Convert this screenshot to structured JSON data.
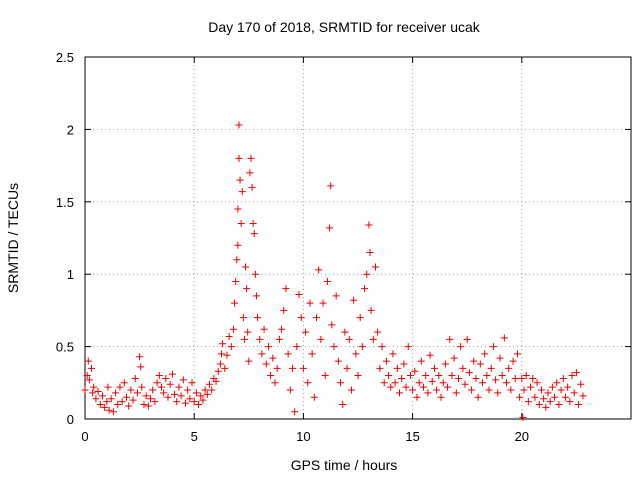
{
  "chart_data": {
    "type": "scatter",
    "title": "Day 170 of 2018, SRMTID for receiver ucak",
    "xlabel": "GPS time / hours",
    "ylabel": "SRMTID / TECUs",
    "xlim": [
      0,
      25
    ],
    "ylim": [
      0,
      2.5
    ],
    "xticks": [
      0,
      5,
      10,
      15,
      20
    ],
    "xtick_labels": [
      "0",
      "5",
      "10",
      "15",
      "20"
    ],
    "yticks": [
      0,
      0.5,
      1,
      1.5,
      2,
      2.5
    ],
    "ytick_labels": [
      "0",
      "0.5",
      "1",
      "1.5",
      "2",
      "2.5"
    ],
    "grid": true,
    "marker": "+",
    "color": "#ee0000",
    "series": [
      {
        "name": "SRMTID",
        "points": [
          [
            0.0,
            0.2
          ],
          [
            0.1,
            0.3
          ],
          [
            0.15,
            0.4
          ],
          [
            0.2,
            0.27
          ],
          [
            0.3,
            0.35
          ],
          [
            0.35,
            0.18
          ],
          [
            0.4,
            0.22
          ],
          [
            0.5,
            0.14
          ],
          [
            0.6,
            0.19
          ],
          [
            0.7,
            0.1
          ],
          [
            0.8,
            0.16
          ],
          [
            0.9,
            0.08
          ],
          [
            1.0,
            0.12
          ],
          [
            1.05,
            0.22
          ],
          [
            1.1,
            0.06
          ],
          [
            1.2,
            0.14
          ],
          [
            1.3,
            0.05
          ],
          [
            1.4,
            0.18
          ],
          [
            1.5,
            0.1
          ],
          [
            1.6,
            0.22
          ],
          [
            1.7,
            0.12
          ],
          [
            1.8,
            0.25
          ],
          [
            1.9,
            0.15
          ],
          [
            2.0,
            0.09
          ],
          [
            2.1,
            0.2
          ],
          [
            2.2,
            0.13
          ],
          [
            2.3,
            0.28
          ],
          [
            2.4,
            0.18
          ],
          [
            2.5,
            0.43
          ],
          [
            2.55,
            0.36
          ],
          [
            2.6,
            0.22
          ],
          [
            2.7,
            0.1
          ],
          [
            2.8,
            0.16
          ],
          [
            2.9,
            0.09
          ],
          [
            3.0,
            0.14
          ],
          [
            3.1,
            0.2
          ],
          [
            3.2,
            0.12
          ],
          [
            3.3,
            0.25
          ],
          [
            3.4,
            0.3
          ],
          [
            3.5,
            0.22
          ],
          [
            3.6,
            0.18
          ],
          [
            3.7,
            0.28
          ],
          [
            3.8,
            0.15
          ],
          [
            3.9,
            0.24
          ],
          [
            4.0,
            0.31
          ],
          [
            4.1,
            0.17
          ],
          [
            4.2,
            0.12
          ],
          [
            4.3,
            0.22
          ],
          [
            4.4,
            0.16
          ],
          [
            4.5,
            0.27
          ],
          [
            4.6,
            0.11
          ],
          [
            4.7,
            0.2
          ],
          [
            4.8,
            0.14
          ],
          [
            4.9,
            0.25
          ],
          [
            5.0,
            0.12
          ],
          [
            5.1,
            0.18
          ],
          [
            5.2,
            0.1
          ],
          [
            5.3,
            0.16
          ],
          [
            5.4,
            0.13
          ],
          [
            5.5,
            0.2
          ],
          [
            5.6,
            0.17
          ],
          [
            5.7,
            0.24
          ],
          [
            5.8,
            0.2
          ],
          [
            5.9,
            0.28
          ],
          [
            6.0,
            0.26
          ],
          [
            6.1,
            0.33
          ],
          [
            6.2,
            0.38
          ],
          [
            6.25,
            0.45
          ],
          [
            6.3,
            0.52
          ],
          [
            6.4,
            0.35
          ],
          [
            6.5,
            0.44
          ],
          [
            6.6,
            0.57
          ],
          [
            6.7,
            0.5
          ],
          [
            6.8,
            0.62
          ],
          [
            6.85,
            0.8
          ],
          [
            6.9,
            0.95
          ],
          [
            6.95,
            1.1
          ],
          [
            7.0,
            1.45
          ],
          [
            7.0,
            1.2
          ],
          [
            7.05,
            1.8
          ],
          [
            7.05,
            2.03
          ],
          [
            7.1,
            1.65
          ],
          [
            7.15,
            1.35
          ],
          [
            7.2,
            1.57
          ],
          [
            7.25,
            0.7
          ],
          [
            7.3,
            0.55
          ],
          [
            7.35,
            1.05
          ],
          [
            7.4,
            0.9
          ],
          [
            7.45,
            0.6
          ],
          [
            7.5,
            0.4
          ],
          [
            7.55,
            1.7
          ],
          [
            7.6,
            1.8
          ],
          [
            7.65,
            1.6
          ],
          [
            7.7,
            1.35
          ],
          [
            7.75,
            1.28
          ],
          [
            7.8,
            1.0
          ],
          [
            7.85,
            0.85
          ],
          [
            7.9,
            0.7
          ],
          [
            8.0,
            0.55
          ],
          [
            8.1,
            0.45
          ],
          [
            8.2,
            0.62
          ],
          [
            8.3,
            0.38
          ],
          [
            8.4,
            0.5
          ],
          [
            8.5,
            0.3
          ],
          [
            8.6,
            0.42
          ],
          [
            8.7,
            0.25
          ],
          [
            8.8,
            0.35
          ],
          [
            8.9,
            0.55
          ],
          [
            9.0,
            0.62
          ],
          [
            9.1,
            0.75
          ],
          [
            9.2,
            0.9
          ],
          [
            9.3,
            0.45
          ],
          [
            9.4,
            0.2
          ],
          [
            9.5,
            0.35
          ],
          [
            9.6,
            0.05
          ],
          [
            9.7,
            0.5
          ],
          [
            9.8,
            0.86
          ],
          [
            9.9,
            0.7
          ],
          [
            10.0,
            0.35
          ],
          [
            10.1,
            0.6
          ],
          [
            10.2,
            0.25
          ],
          [
            10.3,
            0.8
          ],
          [
            10.4,
            0.45
          ],
          [
            10.5,
            0.15
          ],
          [
            10.6,
            0.7
          ],
          [
            10.7,
            1.03
          ],
          [
            10.8,
            0.55
          ],
          [
            10.9,
            0.8
          ],
          [
            11.0,
            0.3
          ],
          [
            11.1,
            0.95
          ],
          [
            11.2,
            1.32
          ],
          [
            11.25,
            1.61
          ],
          [
            11.3,
            0.65
          ],
          [
            11.4,
            0.5
          ],
          [
            11.5,
            0.85
          ],
          [
            11.6,
            0.4
          ],
          [
            11.7,
            0.25
          ],
          [
            11.8,
            0.1
          ],
          [
            11.9,
            0.6
          ],
          [
            12.0,
            0.35
          ],
          [
            12.1,
            0.55
          ],
          [
            12.2,
            0.2
          ],
          [
            12.3,
            0.82
          ],
          [
            12.4,
            0.45
          ],
          [
            12.5,
            0.3
          ],
          [
            12.6,
            0.7
          ],
          [
            12.7,
            0.5
          ],
          [
            12.8,
            0.9
          ],
          [
            12.9,
            1.0
          ],
          [
            13.0,
            1.34
          ],
          [
            13.05,
            1.15
          ],
          [
            13.1,
            0.75
          ],
          [
            13.2,
            0.55
          ],
          [
            13.3,
            1.05
          ],
          [
            13.4,
            0.6
          ],
          [
            13.5,
            0.35
          ],
          [
            13.6,
            0.5
          ],
          [
            13.7,
            0.25
          ],
          [
            13.8,
            0.4
          ],
          [
            13.9,
            0.3
          ],
          [
            14.0,
            0.22
          ],
          [
            14.1,
            0.45
          ],
          [
            14.2,
            0.25
          ],
          [
            14.3,
            0.35
          ],
          [
            14.4,
            0.18
          ],
          [
            14.5,
            0.28
          ],
          [
            14.6,
            0.38
          ],
          [
            14.7,
            0.22
          ],
          [
            14.8,
            0.5
          ],
          [
            14.9,
            0.3
          ],
          [
            15.0,
            0.2
          ],
          [
            15.1,
            0.33
          ],
          [
            15.2,
            0.15
          ],
          [
            15.3,
            0.25
          ],
          [
            15.4,
            0.4
          ],
          [
            15.5,
            0.22
          ],
          [
            15.6,
            0.3
          ],
          [
            15.7,
            0.18
          ],
          [
            15.8,
            0.44
          ],
          [
            15.9,
            0.26
          ],
          [
            16.0,
            0.35
          ],
          [
            16.1,
            0.2
          ],
          [
            16.2,
            0.3
          ],
          [
            16.3,
            0.15
          ],
          [
            16.4,
            0.25
          ],
          [
            16.5,
            0.38
          ],
          [
            16.6,
            0.22
          ],
          [
            16.7,
            0.55
          ],
          [
            16.8,
            0.3
          ],
          [
            16.9,
            0.42
          ],
          [
            17.0,
            0.18
          ],
          [
            17.1,
            0.28
          ],
          [
            17.2,
            0.5
          ],
          [
            17.3,
            0.35
          ],
          [
            17.4,
            0.24
          ],
          [
            17.5,
            0.55
          ],
          [
            17.6,
            0.32
          ],
          [
            17.7,
            0.2
          ],
          [
            17.8,
            0.4
          ],
          [
            17.9,
            0.28
          ],
          [
            18.0,
            0.15
          ],
          [
            18.1,
            0.38
          ],
          [
            18.2,
            0.25
          ],
          [
            18.3,
            0.45
          ],
          [
            18.4,
            0.3
          ],
          [
            18.5,
            0.2
          ],
          [
            18.6,
            0.35
          ],
          [
            18.7,
            0.5
          ],
          [
            18.8,
            0.27
          ],
          [
            18.9,
            0.18
          ],
          [
            19.0,
            0.42
          ],
          [
            19.1,
            0.3
          ],
          [
            19.2,
            0.56
          ],
          [
            19.3,
            0.25
          ],
          [
            19.4,
            0.35
          ],
          [
            19.5,
            0.2
          ],
          [
            19.6,
            0.4
          ],
          [
            19.7,
            0.28
          ],
          [
            19.8,
            0.45
          ],
          [
            19.9,
            0.15
          ],
          [
            20.0,
            0.28
          ],
          [
            20.05,
            0.01
          ],
          [
            20.1,
            0.2
          ],
          [
            20.2,
            0.3
          ],
          [
            20.3,
            0.12
          ],
          [
            20.4,
            0.22
          ],
          [
            20.5,
            0.28
          ],
          [
            20.6,
            0.15
          ],
          [
            20.7,
            0.25
          ],
          [
            20.8,
            0.1
          ],
          [
            20.9,
            0.2
          ],
          [
            21.0,
            0.14
          ],
          [
            21.1,
            0.08
          ],
          [
            21.2,
            0.18
          ],
          [
            21.3,
            0.12
          ],
          [
            21.4,
            0.22
          ],
          [
            21.5,
            0.15
          ],
          [
            21.6,
            0.25
          ],
          [
            21.7,
            0.1
          ],
          [
            21.8,
            0.2
          ],
          [
            21.9,
            0.28
          ],
          [
            22.0,
            0.15
          ],
          [
            22.1,
            0.22
          ],
          [
            22.2,
            0.12
          ],
          [
            22.3,
            0.3
          ],
          [
            22.4,
            0.18
          ],
          [
            22.5,
            0.32
          ],
          [
            22.6,
            0.1
          ],
          [
            22.7,
            0.24
          ],
          [
            22.8,
            0.16
          ]
        ]
      }
    ]
  }
}
